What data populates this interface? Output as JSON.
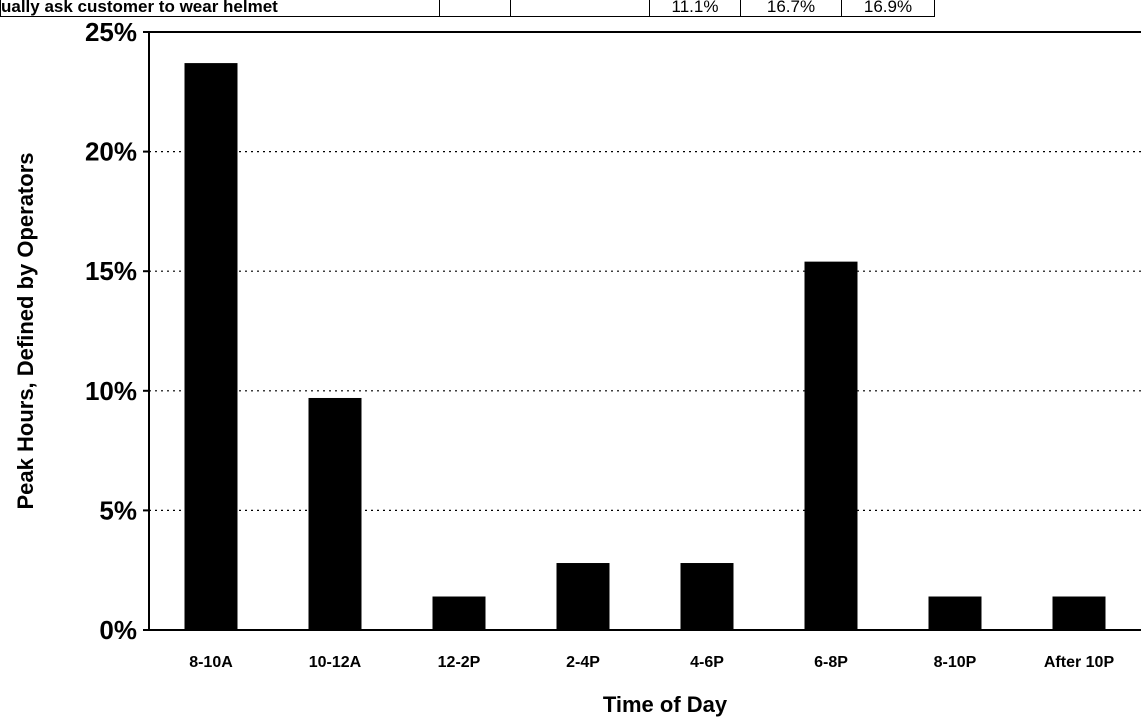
{
  "header_row": {
    "label": "ually ask customer to wear helmet",
    "cells": [
      "",
      "",
      "11.1%",
      "16.7%",
      "16.9%"
    ]
  },
  "chart_data": {
    "type": "bar",
    "title": "",
    "xlabel": "Time of Day",
    "ylabel": "Peak Hours, Defined by Operators",
    "categories": [
      "8-10A",
      "10-12A",
      "12-2P",
      "2-4P",
      "4-6P",
      "6-8P",
      "8-10P",
      "After 10P"
    ],
    "values": [
      23.7,
      9.7,
      1.4,
      2.8,
      2.8,
      15.4,
      1.4,
      1.4
    ],
    "ylim": [
      0,
      25
    ],
    "yticks": [
      0,
      5,
      10,
      15,
      20,
      25
    ],
    "ytick_labels": [
      "0%",
      "5%",
      "10%",
      "15%",
      "20%",
      "25%"
    ],
    "grid": true,
    "bar_color": "#000000"
  }
}
